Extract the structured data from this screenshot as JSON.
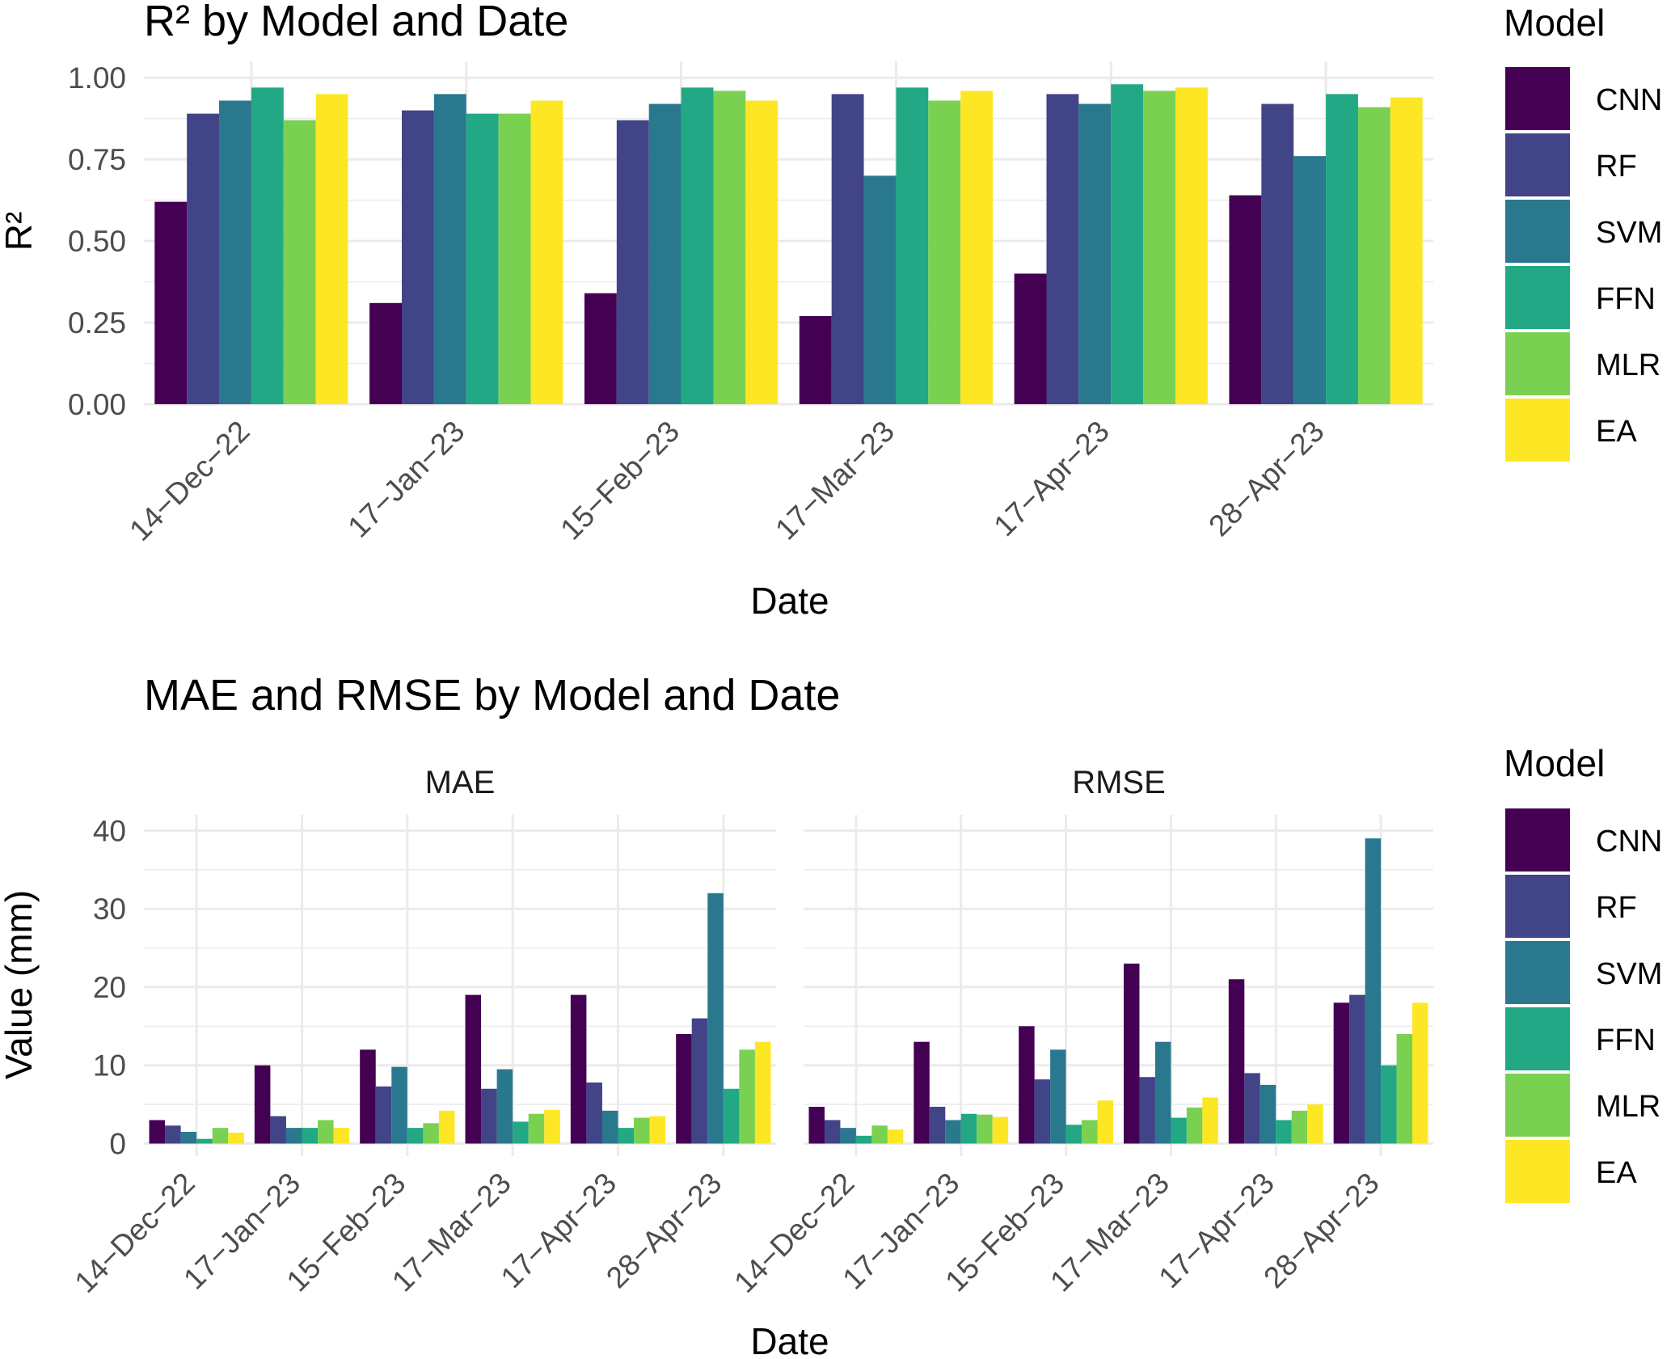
{
  "colors": {
    "CNN": "#440154",
    "RF": "#414487",
    "SVM": "#2A788E",
    "FFN": "#22A884",
    "MLR": "#7AD151",
    "EA": "#FDE725",
    "grid": "#EBEBEB",
    "text": "#000000",
    "tick_text": "#4D4D4D"
  },
  "chart_data": [
    {
      "type": "bar",
      "title": "R² by Model and Date",
      "xlabel": "Date",
      "ylabel": "R²",
      "ylim": [
        0,
        1.05
      ],
      "yticks": [
        "0.00",
        "0.25",
        "0.50",
        "0.75",
        "1.00"
      ],
      "grid": true,
      "legend_title": "Model",
      "legend_position": "right",
      "categories": [
        "14−Dec−22",
        "17−Jan−23",
        "15−Feb−23",
        "17−Mar−23",
        "17−Apr−23",
        "28−Apr−23"
      ],
      "series": [
        {
          "name": "CNN",
          "values": [
            0.62,
            0.31,
            0.34,
            0.27,
            0.4,
            0.64
          ]
        },
        {
          "name": "RF",
          "values": [
            0.89,
            0.9,
            0.87,
            0.95,
            0.95,
            0.92
          ]
        },
        {
          "name": "SVM",
          "values": [
            0.93,
            0.95,
            0.92,
            0.7,
            0.92,
            0.76
          ]
        },
        {
          "name": "FFN",
          "values": [
            0.97,
            0.89,
            0.97,
            0.97,
            0.98,
            0.95
          ]
        },
        {
          "name": "MLR",
          "values": [
            0.87,
            0.89,
            0.96,
            0.93,
            0.96,
            0.91
          ]
        },
        {
          "name": "EA",
          "values": [
            0.95,
            0.93,
            0.93,
            0.96,
            0.97,
            0.94
          ]
        }
      ]
    },
    {
      "type": "bar",
      "title": "MAE and RMSE by Model and Date",
      "xlabel": "Date",
      "ylabel": "Value (mm)",
      "ylim": [
        -1.6,
        42
      ],
      "yticks": [
        "0",
        "10",
        "20",
        "30",
        "40"
      ],
      "grid": true,
      "legend_title": "Model",
      "legend_position": "right",
      "facets": [
        {
          "name": "MAE",
          "categories": [
            "14−Dec−22",
            "17−Jan−23",
            "15−Feb−23",
            "17−Mar−23",
            "17−Apr−23",
            "28−Apr−23"
          ],
          "series": [
            {
              "name": "CNN",
              "values": [
                3.0,
                10.0,
                12.0,
                19.0,
                19.0,
                14.0
              ]
            },
            {
              "name": "RF",
              "values": [
                2.3,
                3.5,
                7.3,
                7.0,
                7.8,
                16.0
              ]
            },
            {
              "name": "SVM",
              "values": [
                1.5,
                2.0,
                9.8,
                9.5,
                4.2,
                32.0
              ]
            },
            {
              "name": "FFN",
              "values": [
                0.6,
                2.0,
                2.0,
                2.8,
                2.0,
                7.0
              ]
            },
            {
              "name": "MLR",
              "values": [
                2.0,
                3.0,
                2.6,
                3.8,
                3.3,
                12.0
              ]
            },
            {
              "name": "EA",
              "values": [
                1.4,
                2.0,
                4.2,
                4.3,
                3.5,
                13.0
              ]
            }
          ]
        },
        {
          "name": "RMSE",
          "categories": [
            "14−Dec−22",
            "17−Jan−23",
            "15−Feb−23",
            "17−Mar−23",
            "17−Apr−23",
            "28−Apr−23"
          ],
          "series": [
            {
              "name": "CNN",
              "values": [
                4.7,
                13.0,
                15.0,
                23.0,
                21.0,
                18.0
              ]
            },
            {
              "name": "RF",
              "values": [
                3.0,
                4.7,
                8.2,
                8.5,
                9.0,
                19.0
              ]
            },
            {
              "name": "SVM",
              "values": [
                2.0,
                3.0,
                12.0,
                13.0,
                7.5,
                39.0
              ]
            },
            {
              "name": "FFN",
              "values": [
                1.0,
                3.8,
                2.4,
                3.3,
                3.0,
                10.0
              ]
            },
            {
              "name": "MLR",
              "values": [
                2.3,
                3.7,
                3.0,
                4.6,
                4.2,
                14.0
              ]
            },
            {
              "name": "EA",
              "values": [
                1.8,
                3.4,
                5.5,
                5.9,
                5.0,
                18.0
              ]
            }
          ]
        }
      ]
    }
  ]
}
